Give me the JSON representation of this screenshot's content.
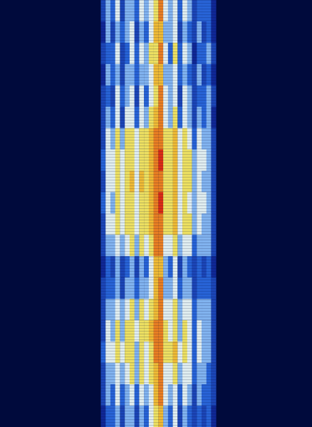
{
  "chart_data": {
    "type": "heatmap",
    "tick_labels": false,
    "xlim": [
      0,
      65
    ],
    "ylim": [
      0,
      20
    ],
    "x": [
      21,
      22,
      23,
      24,
      25,
      26,
      27,
      28,
      29,
      30,
      31,
      32,
      33,
      34,
      35,
      36,
      37,
      38,
      39,
      40,
      41,
      42,
      43,
      44
    ],
    "y": [
      0,
      1,
      2,
      3,
      4,
      5,
      6,
      7,
      8,
      9,
      10,
      11,
      12,
      13,
      14,
      15,
      16,
      17,
      18,
      19
    ],
    "color_range": [
      0,
      10
    ],
    "cells": [
      [
        3,
        5,
        4,
        6,
        3,
        5,
        5,
        4,
        6,
        5,
        6,
        7,
        9,
        6,
        5,
        6,
        4,
        6,
        5,
        3,
        4,
        4,
        4,
        2
      ],
      [
        2,
        5,
        3,
        5,
        4,
        5,
        6,
        3,
        5,
        4,
        6,
        8,
        8,
        5,
        5,
        6,
        3,
        5,
        4,
        3,
        5,
        3,
        4,
        2
      ],
      [
        3,
        4,
        4,
        6,
        3,
        4,
        6,
        4,
        6,
        5,
        7,
        7,
        9,
        6,
        4,
        7,
        4,
        6,
        5,
        2,
        4,
        4,
        5,
        3
      ],
      [
        2,
        5,
        4,
        5,
        3,
        5,
        5,
        4,
        5,
        5,
        6,
        8,
        8,
        5,
        5,
        6,
        4,
        5,
        4,
        3,
        5,
        3,
        4,
        2
      ],
      [
        3,
        4,
        3,
        6,
        4,
        5,
        6,
        3,
        6,
        4,
        6,
        7,
        9,
        6,
        5,
        6,
        3,
        6,
        5,
        3,
        4,
        4,
        5,
        3
      ],
      [
        3,
        5,
        4,
        6,
        3,
        6,
        6,
        4,
        6,
        5,
        7,
        8,
        9,
        6,
        5,
        7,
        4,
        6,
        5,
        3,
        5,
        4,
        5,
        2
      ],
      [
        3,
        6,
        5,
        7,
        5,
        7,
        7,
        6,
        7,
        7,
        8,
        9,
        9,
        7,
        7,
        8,
        6,
        7,
        6,
        4,
        6,
        5,
        5,
        3
      ],
      [
        4,
        6,
        6,
        7,
        6,
        7,
        7,
        6,
        7,
        7,
        8,
        9,
        10,
        7,
        7,
        8,
        6,
        7,
        7,
        5,
        6,
        6,
        5,
        3
      ],
      [
        3,
        6,
        6,
        7,
        6,
        7,
        8,
        6,
        8,
        7,
        8,
        9,
        9,
        7,
        7,
        8,
        6,
        7,
        7,
        5,
        6,
        5,
        5,
        3
      ],
      [
        4,
        6,
        5,
        7,
        6,
        7,
        7,
        6,
        7,
        7,
        8,
        9,
        10,
        7,
        7,
        8,
        6,
        7,
        6,
        5,
        6,
        6,
        5,
        3
      ],
      [
        3,
        6,
        6,
        7,
        6,
        7,
        7,
        6,
        7,
        7,
        8,
        9,
        9,
        7,
        7,
        8,
        6,
        7,
        7,
        5,
        6,
        5,
        5,
        3
      ],
      [
        3,
        5,
        5,
        6,
        5,
        6,
        7,
        5,
        7,
        6,
        7,
        9,
        9,
        6,
        6,
        7,
        5,
        6,
        6,
        4,
        5,
        5,
        5,
        3
      ],
      [
        2,
        4,
        3,
        5,
        3,
        4,
        5,
        3,
        5,
        4,
        6,
        8,
        8,
        5,
        4,
        6,
        3,
        5,
        4,
        3,
        4,
        3,
        4,
        2
      ],
      [
        3,
        4,
        4,
        5,
        3,
        5,
        5,
        4,
        5,
        5,
        6,
        8,
        9,
        5,
        5,
        6,
        4,
        5,
        5,
        3,
        4,
        4,
        4,
        3
      ],
      [
        3,
        5,
        5,
        6,
        5,
        6,
        7,
        5,
        7,
        6,
        7,
        8,
        9,
        6,
        6,
        7,
        5,
        6,
        6,
        4,
        5,
        5,
        5,
        3
      ],
      [
        3,
        6,
        5,
        7,
        5,
        7,
        7,
        6,
        7,
        7,
        8,
        9,
        9,
        7,
        6,
        7,
        5,
        7,
        6,
        4,
        6,
        5,
        5,
        3
      ],
      [
        4,
        6,
        6,
        7,
        6,
        7,
        7,
        5,
        7,
        6,
        7,
        9,
        9,
        7,
        7,
        8,
        6,
        7,
        6,
        4,
        6,
        5,
        5,
        3
      ],
      [
        3,
        5,
        5,
        6,
        5,
        6,
        7,
        5,
        7,
        6,
        7,
        8,
        9,
        6,
        6,
        7,
        5,
        6,
        6,
        4,
        5,
        5,
        4,
        3
      ],
      [
        3,
        5,
        4,
        6,
        4,
        5,
        6,
        4,
        6,
        5,
        6,
        8,
        9,
        6,
        5,
        6,
        4,
        6,
        5,
        3,
        5,
        4,
        4,
        3
      ],
      [
        2,
        4,
        4,
        5,
        3,
        5,
        5,
        3,
        5,
        4,
        6,
        7,
        8,
        5,
        4,
        6,
        3,
        5,
        4,
        3,
        4,
        3,
        4,
        2
      ]
    ]
  }
}
